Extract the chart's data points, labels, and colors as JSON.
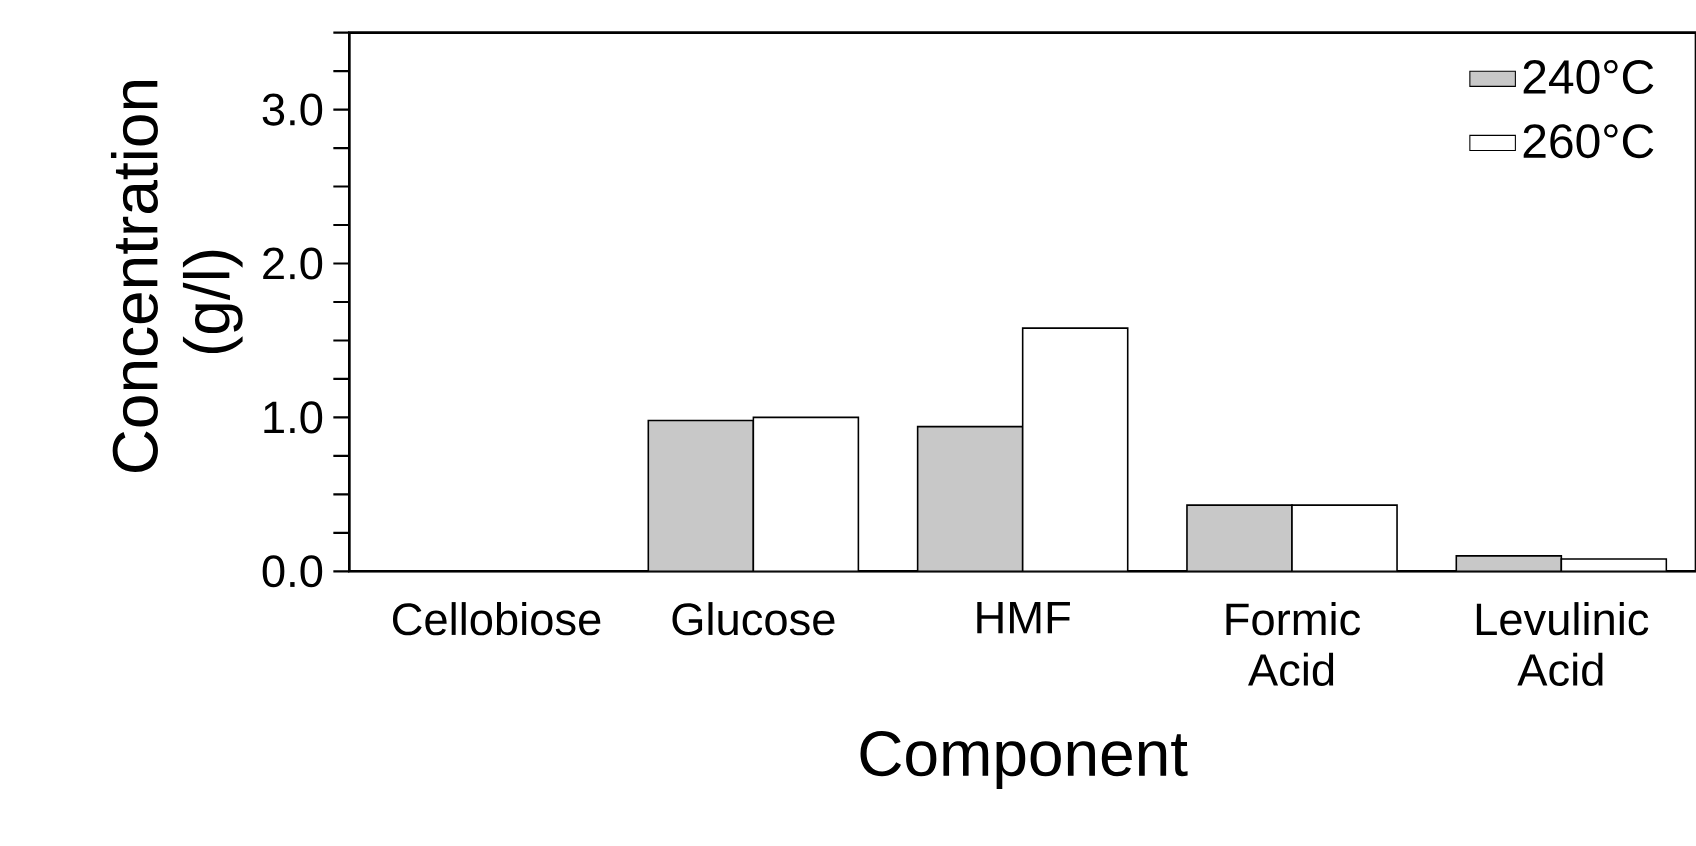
{
  "chart_data": {
    "type": "bar",
    "xlabel": "Component",
    "ylabel": "Concentration (g/l)",
    "categories": [
      "Cellobiose",
      "Glucose",
      "HMF",
      "Formic Acid",
      "Levulinic Acid"
    ],
    "series": [
      {
        "name": "240°C",
        "color": "#c8c8c8",
        "values": [
          0,
          0.98,
          0.94,
          0.43,
          0.1
        ]
      },
      {
        "name": "260°C",
        "color": "#ffffff",
        "values": [
          0,
          1.0,
          1.58,
          0.43,
          0.08
        ]
      }
    ],
    "ylim": [
      0,
      3.5
    ],
    "yticks": [
      {
        "value": 0,
        "label": "0.0"
      },
      {
        "value": 0.25,
        "label": null
      },
      {
        "value": 0.5,
        "label": null
      },
      {
        "value": 0.75,
        "label": null
      },
      {
        "value": 1,
        "label": "1.0"
      },
      {
        "value": 1.25,
        "label": null
      },
      {
        "value": 1.5,
        "label": null
      },
      {
        "value": 1.75,
        "label": null
      },
      {
        "value": 2,
        "label": "2.0"
      },
      {
        "value": 2.25,
        "label": null
      },
      {
        "value": 2.5,
        "label": null
      },
      {
        "value": 2.75,
        "label": null
      },
      {
        "value": 3,
        "label": "3.0"
      },
      {
        "value": 3.25,
        "label": null
      },
      {
        "value": 3.5,
        "label": null
      }
    ],
    "grid": false,
    "legend": "top right"
  }
}
